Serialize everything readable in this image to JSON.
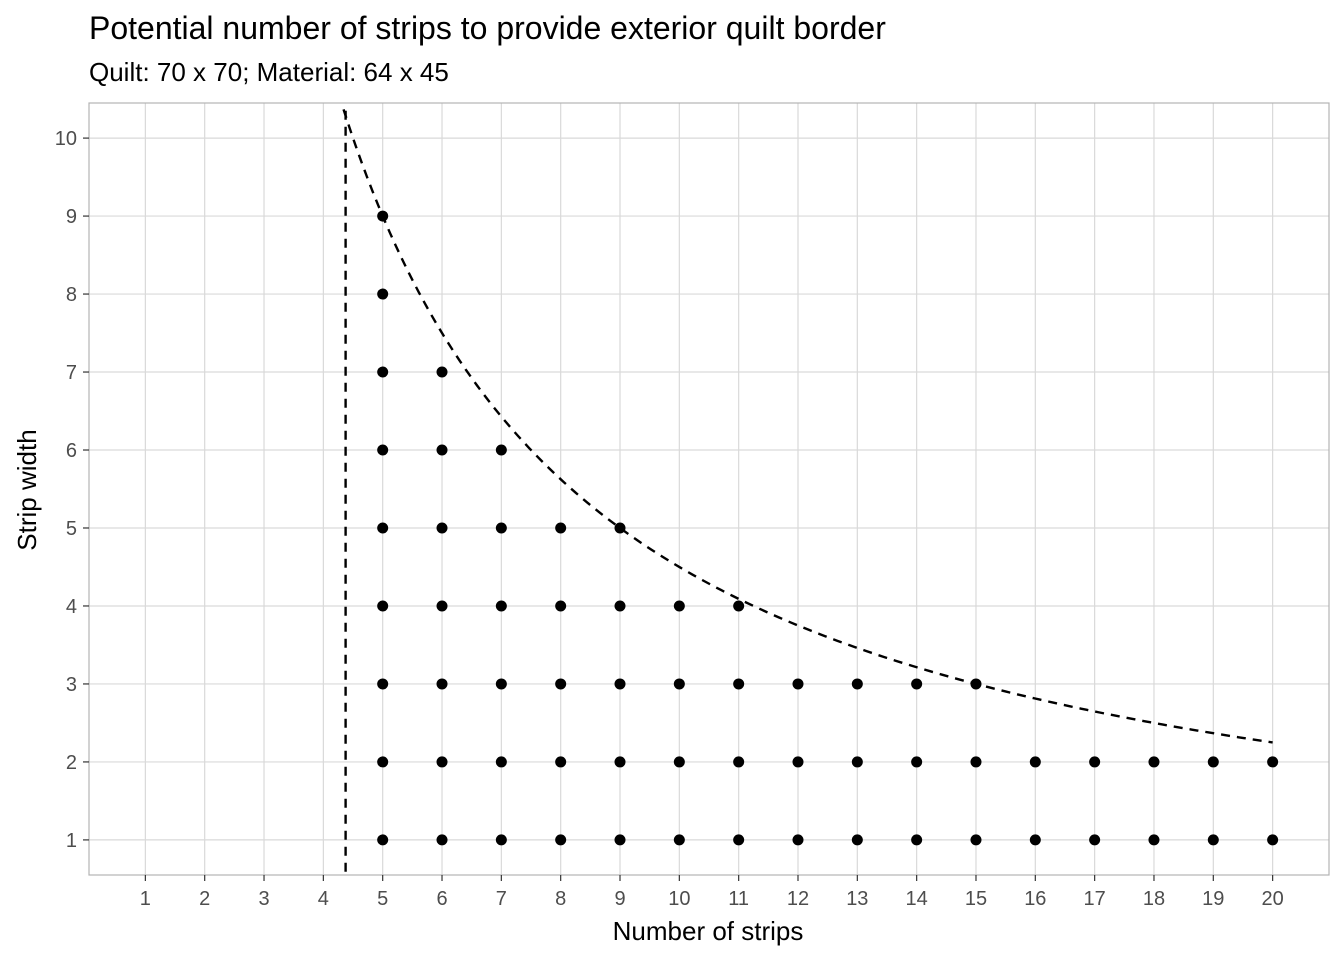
{
  "title": "Potential number of strips to provide exterior quilt border",
  "subtitle": "Quilt: 70 x 70; Material: 64 x 45",
  "chart_data": {
    "type": "scatter",
    "title": "Potential number of strips to provide exterior quilt border",
    "subtitle": "Quilt: 70 x 70; Material: 64 x 45",
    "xlabel": "Number of strips",
    "ylabel": "Strip width",
    "xlim": [
      0.05,
      20.95
    ],
    "ylim": [
      0.55,
      10.45
    ],
    "x_ticks": [
      1,
      2,
      3,
      4,
      5,
      6,
      7,
      8,
      9,
      10,
      11,
      12,
      13,
      14,
      15,
      16,
      17,
      18,
      19,
      20
    ],
    "y_ticks": [
      1,
      2,
      3,
      4,
      5,
      6,
      7,
      8,
      9,
      10
    ],
    "grid": true,
    "points": [
      {
        "x": 5,
        "y": 1
      },
      {
        "x": 5,
        "y": 2
      },
      {
        "x": 5,
        "y": 3
      },
      {
        "x": 5,
        "y": 4
      },
      {
        "x": 5,
        "y": 5
      },
      {
        "x": 5,
        "y": 6
      },
      {
        "x": 5,
        "y": 7
      },
      {
        "x": 5,
        "y": 8
      },
      {
        "x": 5,
        "y": 9
      },
      {
        "x": 6,
        "y": 1
      },
      {
        "x": 6,
        "y": 2
      },
      {
        "x": 6,
        "y": 3
      },
      {
        "x": 6,
        "y": 4
      },
      {
        "x": 6,
        "y": 5
      },
      {
        "x": 6,
        "y": 6
      },
      {
        "x": 6,
        "y": 7
      },
      {
        "x": 7,
        "y": 1
      },
      {
        "x": 7,
        "y": 2
      },
      {
        "x": 7,
        "y": 3
      },
      {
        "x": 7,
        "y": 4
      },
      {
        "x": 7,
        "y": 5
      },
      {
        "x": 7,
        "y": 6
      },
      {
        "x": 8,
        "y": 1
      },
      {
        "x": 8,
        "y": 2
      },
      {
        "x": 8,
        "y": 3
      },
      {
        "x": 8,
        "y": 4
      },
      {
        "x": 8,
        "y": 5
      },
      {
        "x": 9,
        "y": 1
      },
      {
        "x": 9,
        "y": 2
      },
      {
        "x": 9,
        "y": 3
      },
      {
        "x": 9,
        "y": 4
      },
      {
        "x": 9,
        "y": 5
      },
      {
        "x": 10,
        "y": 1
      },
      {
        "x": 10,
        "y": 2
      },
      {
        "x": 10,
        "y": 3
      },
      {
        "x": 10,
        "y": 4
      },
      {
        "x": 11,
        "y": 1
      },
      {
        "x": 11,
        "y": 2
      },
      {
        "x": 11,
        "y": 3
      },
      {
        "x": 11,
        "y": 4
      },
      {
        "x": 12,
        "y": 1
      },
      {
        "x": 12,
        "y": 2
      },
      {
        "x": 12,
        "y": 3
      },
      {
        "x": 13,
        "y": 1
      },
      {
        "x": 13,
        "y": 2
      },
      {
        "x": 13,
        "y": 3
      },
      {
        "x": 14,
        "y": 1
      },
      {
        "x": 14,
        "y": 2
      },
      {
        "x": 14,
        "y": 3
      },
      {
        "x": 15,
        "y": 1
      },
      {
        "x": 15,
        "y": 2
      },
      {
        "x": 15,
        "y": 3
      },
      {
        "x": 16,
        "y": 1
      },
      {
        "x": 16,
        "y": 2
      },
      {
        "x": 17,
        "y": 1
      },
      {
        "x": 17,
        "y": 2
      },
      {
        "x": 18,
        "y": 1
      },
      {
        "x": 18,
        "y": 2
      },
      {
        "x": 19,
        "y": 1
      },
      {
        "x": 19,
        "y": 2
      },
      {
        "x": 20,
        "y": 1
      },
      {
        "x": 20,
        "y": 2
      }
    ],
    "reference_lines": [
      {
        "type": "vertical",
        "style": "dashed",
        "x": 4.375
      },
      {
        "type": "curve",
        "style": "dashed",
        "equation": "y = 45 / x",
        "x_range": [
          4.34,
          20
        ]
      }
    ],
    "colors": {
      "points": "#000000",
      "grid": "#d9d9d9",
      "panel_border": "#b3b3b3",
      "tick_text": "#4d4d4d"
    }
  }
}
